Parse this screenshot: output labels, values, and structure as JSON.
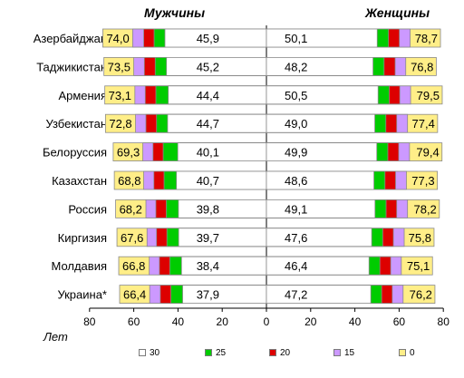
{
  "chart_data": {
    "type": "bar",
    "panels": [
      {
        "title": "Мужчины"
      },
      {
        "title": "Женщины"
      }
    ],
    "unit_label": "Лет",
    "categories": [
      "Азербайджан",
      "Таджикистан",
      "Армения",
      "Узбекистан",
      "Белоруссия",
      "Казахстан",
      "Россия",
      "Киргизия",
      "Молдавия",
      "Украина*"
    ],
    "men": {
      "age0": [
        74.0,
        73.5,
        73.1,
        72.8,
        69.3,
        68.8,
        68.2,
        67.6,
        66.8,
        66.4
      ],
      "age15": [
        60.5,
        60.0,
        59.5,
        59.2,
        55.9,
        55.5,
        54.5,
        54.0,
        53.0,
        52.8
      ],
      "age20": [
        55.5,
        55.2,
        54.8,
        54.5,
        51.3,
        50.9,
        50.0,
        49.7,
        48.4,
        48.0
      ],
      "age25": [
        50.8,
        50.3,
        50.0,
        49.7,
        46.7,
        46.3,
        45.3,
        45.0,
        43.7,
        43.2
      ],
      "age30": [
        45.9,
        45.2,
        44.4,
        44.7,
        40.1,
        40.7,
        39.8,
        39.7,
        38.4,
        37.9
      ]
    },
    "women": {
      "age30": [
        50.1,
        48.2,
        50.5,
        49.0,
        49.9,
        48.6,
        49.1,
        47.6,
        46.4,
        47.2
      ],
      "age25": [
        55.2,
        53.2,
        55.5,
        54.0,
        54.9,
        53.6,
        54.1,
        52.6,
        51.3,
        52.1
      ],
      "age20": [
        60.1,
        58.2,
        60.3,
        58.9,
        59.8,
        58.4,
        58.9,
        57.4,
        56.2,
        56.9
      ],
      "age15": [
        65.0,
        63.0,
        65.2,
        63.8,
        64.7,
        63.3,
        63.8,
        62.3,
        61.0,
        61.8
      ],
      "age0": [
        78.7,
        76.8,
        79.5,
        77.4,
        79.4,
        77.3,
        78.2,
        75.8,
        75.1,
        76.2
      ]
    },
    "x_axis": {
      "range": [
        0,
        80
      ],
      "ticks": [
        "80",
        "60",
        "40",
        "20",
        "0",
        "20",
        "40",
        "60",
        "80"
      ]
    },
    "legend": [
      {
        "label": "30",
        "color": "#ffffff"
      },
      {
        "label": "25",
        "color": "#00cc00"
      },
      {
        "label": "20",
        "color": "#dd0000"
      },
      {
        "label": "15",
        "color": "#cc99ff"
      },
      {
        "label": "0",
        "color": "#ffee88"
      }
    ]
  }
}
